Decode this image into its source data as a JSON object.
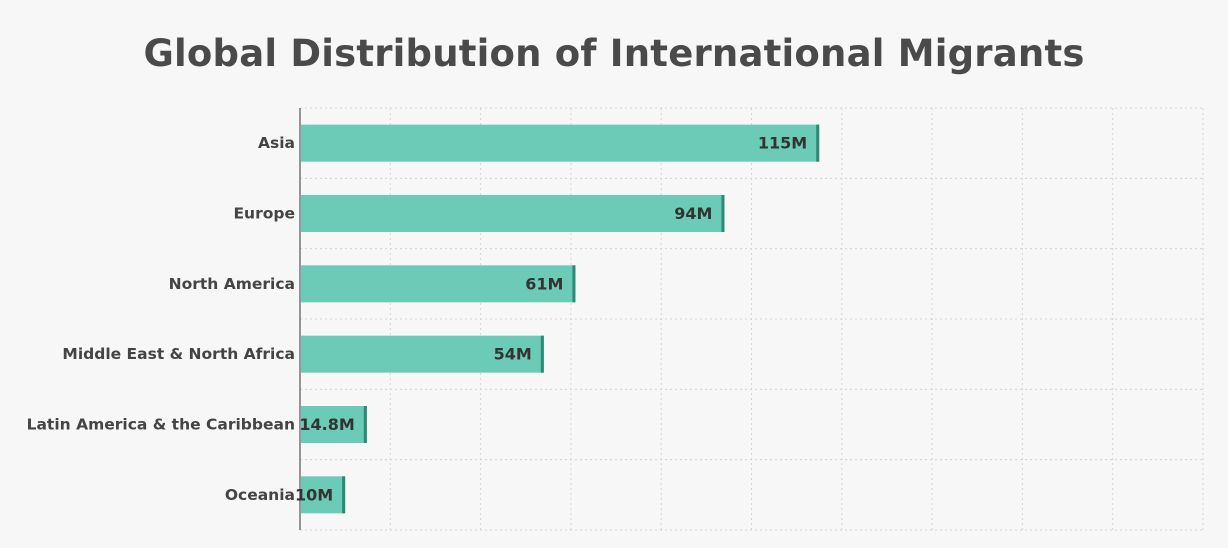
{
  "chart_data": {
    "type": "bar",
    "orientation": "horizontal",
    "title": "Global Distribution of International Migrants",
    "xlabel": "",
    "ylabel": "",
    "categories": [
      "Asia",
      "Europe",
      "North America",
      "Middle East & North Africa",
      "Latin America & the Caribbean",
      "Oceania"
    ],
    "values": [
      115,
      94,
      61,
      54,
      14.8,
      10
    ],
    "value_labels": [
      "115M",
      "94M",
      "61M",
      "54M",
      "14.8M",
      "10M"
    ],
    "xlim": [
      0,
      200
    ],
    "grid": true,
    "legend": "none",
    "colors": {
      "bar": "#6ccbb7",
      "bar_edge": "#2a8a76",
      "text": "#444444",
      "title": "#4a4a4a"
    }
  }
}
